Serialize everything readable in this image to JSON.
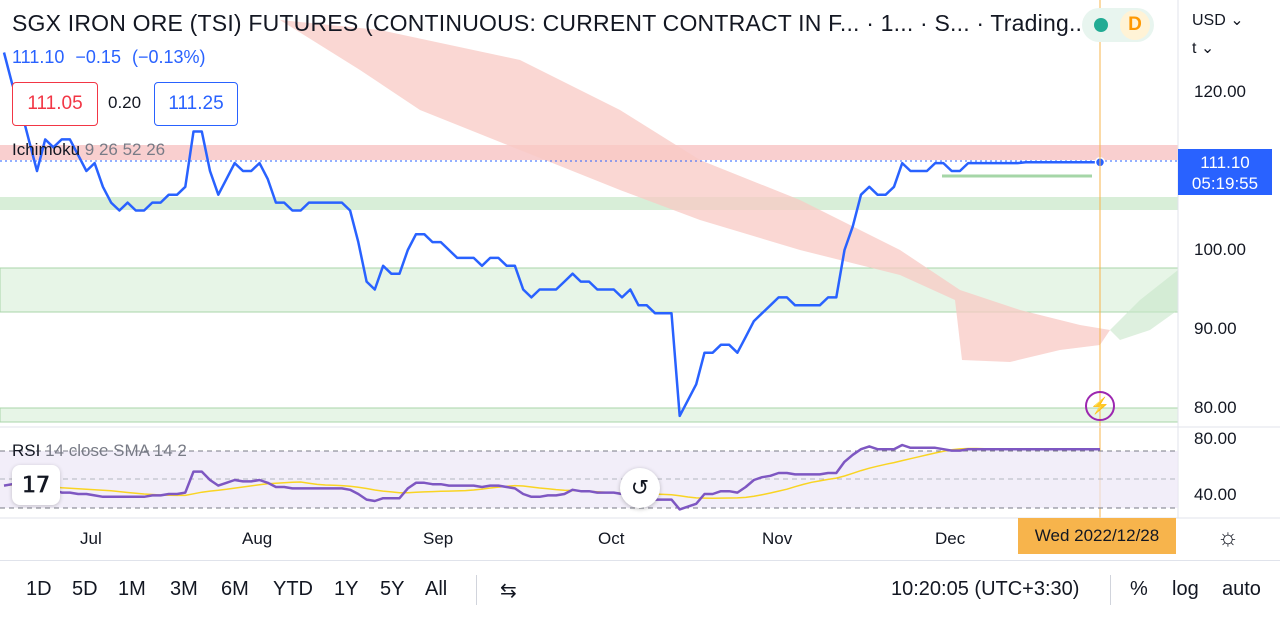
{
  "header": {
    "title": "SGX IRON ORE (TSI) FUTURES (CONTINUOUS: CURRENT CONTRACT IN F...  · 1...  · S...   · Trading...",
    "last": "111.10",
    "change": "−0.15",
    "change_pct": "(−0.13%)",
    "bid": "111.05",
    "spread": "0.20",
    "ask": "111.25",
    "status_badge": "D"
  },
  "indicators": {
    "ichimoku_name": "Ichimoku",
    "ichimoku_params": "9 26 52 26",
    "rsi_name": "RSI",
    "rsi_params": "14 close SMA 14 2"
  },
  "axis": {
    "currency": "USD",
    "unit": "t",
    "price_labels": [
      "120.00",
      "100.00",
      "90.00",
      "80.00"
    ],
    "rsi_labels": [
      "80.00",
      "40.00"
    ],
    "last_price_tag": "111.10",
    "countdown": "05:19:55",
    "crosshair_date": "Wed 2022/12/28",
    "months": [
      "Jul",
      "Aug",
      "Sep",
      "Oct",
      "Nov",
      "Dec"
    ]
  },
  "toolbar": {
    "ranges": [
      "1D",
      "5D",
      "1M",
      "3M",
      "6M",
      "YTD",
      "1Y",
      "5Y",
      "All"
    ],
    "time": "10:20:05 (UTC+3:30)",
    "percent": "%",
    "log": "log",
    "auto": "auto"
  },
  "colors": {
    "price_line": "#2962ff",
    "rsi_line": "#7e57c2",
    "rsi_ma": "#f9d423",
    "cloud_bear": "#f8c5c0",
    "cloud_bull": "#c8e6c9",
    "crosshair": "#f7b44c"
  },
  "icons": [
    "bolt-icon",
    "reset-icon",
    "settings-icon",
    "compare-icon",
    "tradingview-logo-icon"
  ],
  "chart_data": {
    "type": "line",
    "x": [
      "Jun 24",
      "Jun 27",
      "Jun 28",
      "Jun 29",
      "Jun 30",
      "Jul 1",
      "Jul 4",
      "Jul 5",
      "Jul 6",
      "Jul 7",
      "Jul 8",
      "Jul 11",
      "Jul 12",
      "Jul 13",
      "Jul 14",
      "Jul 15",
      "Jul 18",
      "Jul 19",
      "Jul 20",
      "Jul 21",
      "Jul 22",
      "Jul 25",
      "Jul 26",
      "Jul 27",
      "Jul 28",
      "Jul 29",
      "Aug 1",
      "Aug 2",
      "Aug 3",
      "Aug 4",
      "Aug 5",
      "Aug 8",
      "Aug 9",
      "Aug 10",
      "Aug 11",
      "Aug 12",
      "Aug 15",
      "Aug 16",
      "Aug 17",
      "Aug 18",
      "Aug 19",
      "Aug 22",
      "Aug 23",
      "Aug 24",
      "Aug 25",
      "Aug 26",
      "Aug 29",
      "Aug 30",
      "Aug 31",
      "Sep 1",
      "Sep 2",
      "Sep 5",
      "Sep 6",
      "Sep 7",
      "Sep 8",
      "Sep 9",
      "Sep 12",
      "Sep 13",
      "Sep 14",
      "Sep 15",
      "Sep 16",
      "Sep 19",
      "Sep 20",
      "Sep 21",
      "Sep 22",
      "Sep 23",
      "Sep 26",
      "Sep 27",
      "Sep 28",
      "Sep 29",
      "Sep 30",
      "Oct 3",
      "Oct 4",
      "Oct 5",
      "Oct 6",
      "Oct 7",
      "Oct 10",
      "Oct 11",
      "Oct 12",
      "Oct 13",
      "Oct 14",
      "Oct 17",
      "Oct 18",
      "Oct 19",
      "Oct 20",
      "Oct 21",
      "Oct 24",
      "Oct 25",
      "Oct 26",
      "Oct 27",
      "Oct 28",
      "Oct 31",
      "Nov 1",
      "Nov 2",
      "Nov 3",
      "Nov 4",
      "Nov 7",
      "Nov 8",
      "Nov 9",
      "Nov 10",
      "Nov 11",
      "Nov 14",
      "Nov 15",
      "Nov 16",
      "Nov 17",
      "Nov 18",
      "Nov 21",
      "Nov 22",
      "Nov 23",
      "Nov 24",
      "Nov 25",
      "Nov 28",
      "Nov 29",
      "Nov 30",
      "Dec 1",
      "Dec 2",
      "Dec 5",
      "Dec 6",
      "Dec 7",
      "Dec 8",
      "Dec 9",
      "Dec 12",
      "Dec 13",
      "Dec 14",
      "Dec 15",
      "Dec 16",
      "Dec 19",
      "Dec 20",
      "Dec 21",
      "Dec 22",
      "Dec 23",
      "Dec 26",
      "Dec 27",
      "Dec 28"
    ],
    "series": [
      {
        "values": [
          125,
          121,
          118,
          114,
          110,
          114,
          113,
          114,
          114,
          112,
          110,
          111,
          108,
          106,
          105,
          106,
          105,
          105,
          106,
          106,
          107,
          107,
          108,
          115,
          115,
          110,
          107,
          109,
          111,
          110,
          110,
          111,
          109,
          106,
          106,
          105,
          105,
          106,
          106,
          106,
          106,
          106,
          105,
          101,
          96,
          95,
          98,
          97,
          97,
          100,
          102,
          102,
          101,
          101,
          100,
          99,
          99,
          99,
          98,
          99,
          99,
          98,
          98,
          95,
          94,
          95,
          95,
          95,
          96,
          97,
          96,
          96,
          95,
          95,
          95,
          94,
          95,
          93,
          93,
          92,
          92,
          92,
          79,
          81,
          83,
          87,
          87,
          88,
          88,
          87,
          89,
          91,
          92,
          93,
          94,
          94,
          93,
          93,
          93,
          93,
          94,
          94,
          100,
          103,
          107,
          108,
          107,
          107,
          108,
          111,
          110,
          110,
          110,
          111,
          111,
          110,
          110,
          111,
          111,
          111,
          111,
          111,
          111,
          111,
          111.1,
          111.1,
          111.1,
          111.1,
          111.1,
          111.1,
          111.1,
          111.1,
          111.1,
          111.1
        ]
      }
    ],
    "current_price": 111.1,
    "y_axis_labels": [
      120,
      100,
      90,
      80
    ],
    "rsi": {
      "values": [
        46,
        47,
        46,
        45,
        44,
        44,
        43,
        41,
        41,
        40,
        40,
        39,
        38,
        38,
        38,
        38,
        38,
        38,
        39,
        39,
        40,
        40,
        41,
        56,
        56,
        50,
        46,
        48,
        50,
        49,
        49,
        50,
        48,
        45,
        45,
        44,
        44,
        44,
        44,
        44,
        44,
        44,
        43,
        40,
        36,
        35,
        37,
        37,
        37,
        44,
        48,
        48,
        47,
        47,
        46,
        46,
        46,
        46,
        45,
        46,
        46,
        45,
        44,
        40,
        38,
        38,
        39,
        39,
        40,
        43,
        42,
        42,
        41,
        41,
        41,
        40,
        40,
        38,
        37,
        36,
        36,
        36,
        29,
        31,
        33,
        40,
        40,
        42,
        42,
        41,
        45,
        50,
        52,
        53,
        55,
        55,
        54,
        54,
        54,
        54,
        55,
        55,
        63,
        68,
        72,
        74,
        72,
        72,
        72,
        75,
        73,
        73,
        73,
        73,
        72,
        71,
        71,
        72,
        72,
        72,
        72,
        72,
        72,
        72,
        72,
        72,
        72,
        72,
        72,
        72,
        72,
        72,
        72,
        72
      ],
      "upper": 70,
      "lower": 30,
      "axis_labels": [
        80,
        40
      ]
    }
  }
}
